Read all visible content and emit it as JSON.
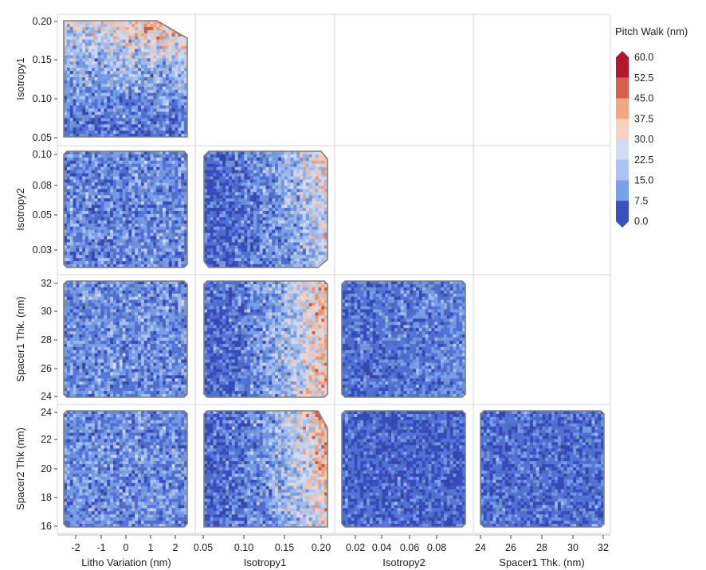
{
  "chart_data": {
    "type": "contour-matrix",
    "variables": [
      "Litho Variation (nm)",
      "Isotropy1",
      "Isotropy2",
      "Spacer1 Thk. (nm)",
      "Spacer2 Thk (nm)"
    ],
    "x_axes": [
      {
        "title": "Litho Variation (nm)",
        "ticks": [
          "-2",
          "-1",
          "0",
          "1",
          "2"
        ],
        "range": [
          -2.5,
          2.5
        ]
      },
      {
        "title": "Isotropy1",
        "ticks": [
          "0.05",
          "0.10",
          "0.15",
          "0.20"
        ],
        "range": [
          0.05,
          0.2
        ]
      },
      {
        "title": "Isotropy2",
        "ticks": [
          "0.02",
          "0.04",
          "0.06",
          "0.08"
        ],
        "range": [
          0.01,
          0.1
        ]
      },
      {
        "title": "Spacer1 Thk. (nm)",
        "ticks": [
          "24",
          "26",
          "28",
          "30",
          "32"
        ],
        "range": [
          24,
          32
        ]
      }
    ],
    "y_axes": [
      {
        "title": "Isotropy1",
        "ticks": [
          "0.05",
          "0.10",
          "0.15",
          "0.20"
        ],
        "range": [
          0.05,
          0.2
        ]
      },
      {
        "title": "Isotropy2",
        "ticks": [
          "0.03",
          "0.05",
          "0.08",
          "0.10"
        ],
        "range": [
          0.02,
          0.1
        ]
      },
      {
        "title": "Spacer1 Thk. (nm)",
        "ticks": [
          "24",
          "26",
          "28",
          "30",
          "32"
        ],
        "range": [
          24,
          32
        ]
      },
      {
        "title": "Spacer2 Thk (nm)",
        "ticks": [
          "16",
          "18",
          "20",
          "22",
          "24"
        ],
        "range": [
          16,
          24
        ]
      }
    ],
    "panels": [
      {
        "row": 0,
        "col": 0,
        "x": "Litho Variation (nm)",
        "y": "Isotropy1",
        "trend": "rises with Isotropy1 and Litho Variation, max ~50 nm at top-right"
      },
      {
        "row": 1,
        "col": 0,
        "x": "Litho Variation (nm)",
        "y": "Isotropy2",
        "trend": "mostly 7.5-30 nm, noisy"
      },
      {
        "row": 1,
        "col": 1,
        "x": "Isotropy1",
        "y": "Isotropy2",
        "trend": "rises with Isotropy1, ~45 nm at top-right"
      },
      {
        "row": 2,
        "col": 0,
        "x": "Litho Variation (nm)",
        "y": "Spacer1 Thk. (nm)",
        "trend": "mostly 7.5-30 nm, noisy"
      },
      {
        "row": 2,
        "col": 1,
        "x": "Isotropy1",
        "y": "Spacer1 Thk. (nm)",
        "trend": "rises with Isotropy1, ~45 nm at right"
      },
      {
        "row": 2,
        "col": 2,
        "x": "Isotropy2",
        "y": "Spacer1 Thk. (nm)",
        "trend": "mostly 0-22.5 nm"
      },
      {
        "row": 3,
        "col": 0,
        "x": "Litho Variation (nm)",
        "y": "Spacer2 Thk (nm)",
        "trend": "mostly 7.5-30 nm, noisy"
      },
      {
        "row": 3,
        "col": 1,
        "x": "Isotropy1",
        "y": "Spacer2 Thk (nm)",
        "trend": "rises with Isotropy1, ~50 nm at right"
      },
      {
        "row": 3,
        "col": 2,
        "x": "Isotropy2",
        "y": "Spacer2 Thk (nm)",
        "trend": "mostly 0-22.5 nm"
      },
      {
        "row": 3,
        "col": 3,
        "x": "Spacer1 Thk. (nm)",
        "y": "Spacer2 Thk (nm)",
        "trend": "mostly 0-22.5 nm"
      }
    ],
    "legend": {
      "title": "Pitch Walk (nm)",
      "levels": [
        "60.0",
        "52.5",
        "45.0",
        "37.5",
        "30.0",
        "22.5",
        "15.0",
        "7.5",
        "0.0"
      ],
      "level_values": [
        60,
        52.5,
        45,
        37.5,
        30,
        22.5,
        15,
        7.5,
        0
      ],
      "colors": [
        "#b2182b",
        "#d6604d",
        "#f4a582",
        "#fbd0bd",
        "#d1dcf0",
        "#a9c3f5",
        "#7aa0ec",
        "#5576db",
        "#3a4fc0"
      ],
      "placement": "right"
    }
  }
}
